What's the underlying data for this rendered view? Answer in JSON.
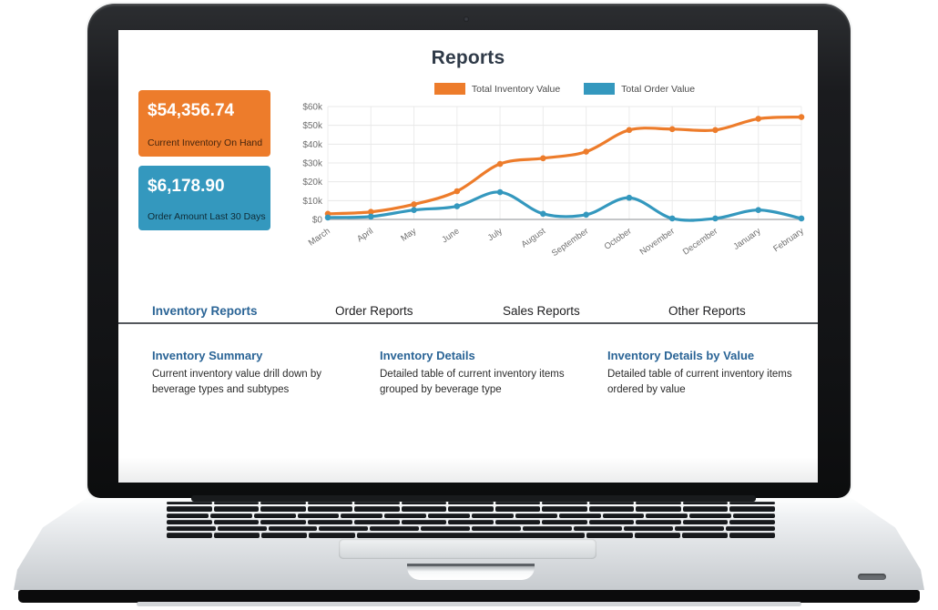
{
  "header": {
    "title": "Reports"
  },
  "stat_cards": [
    {
      "value": "$54,356.74",
      "label": "Current Inventory On Hand",
      "color": "#ED7C2B"
    },
    {
      "value": "$6,178.90",
      "label": "Order Amount Last 30 Days",
      "color": "#3498BE"
    }
  ],
  "chart_data": {
    "type": "line",
    "x": [
      "March",
      "April",
      "May",
      "June",
      "July",
      "August",
      "September",
      "October",
      "November",
      "December",
      "January",
      "February"
    ],
    "series": [
      {
        "name": "Total Inventory Value",
        "color": "#ED7C2B",
        "values": [
          3000,
          4000,
          8000,
          15000,
          29500,
          32500,
          36000,
          47500,
          48000,
          47500,
          53500,
          54400
        ]
      },
      {
        "name": "Total Order Value",
        "color": "#3498BE",
        "values": [
          1000,
          1500,
          5000,
          7000,
          14500,
          3000,
          2500,
          11500,
          500,
          500,
          5000,
          500
        ]
      }
    ],
    "ylim": [
      0,
      60000
    ],
    "ytick_step": 10000,
    "ytick_labels": [
      "$0",
      "$10k",
      "$20k",
      "$30k",
      "$40k",
      "$50k",
      "$60k"
    ],
    "grid": true,
    "legend_position": "top",
    "title": ""
  },
  "tabs": [
    {
      "label": "Inventory Reports",
      "active": true
    },
    {
      "label": "Order Reports",
      "active": false
    },
    {
      "label": "Sales Reports",
      "active": false
    },
    {
      "label": "Other Reports",
      "active": false
    }
  ],
  "report_links": [
    {
      "title": "Inventory Summary",
      "description": "Current inventory value drill down by beverage types and subtypes"
    },
    {
      "title": "Inventory Details",
      "description": "Detailed table of current inventory items grouped by beverage type"
    },
    {
      "title": "Inventory Details by Value",
      "description": "Detailed table of current inventory items ordered by value"
    }
  ],
  "colors": {
    "accent_orange": "#ED7C2B",
    "accent_blue": "#3498BE",
    "link_blue": "#2A6496"
  }
}
